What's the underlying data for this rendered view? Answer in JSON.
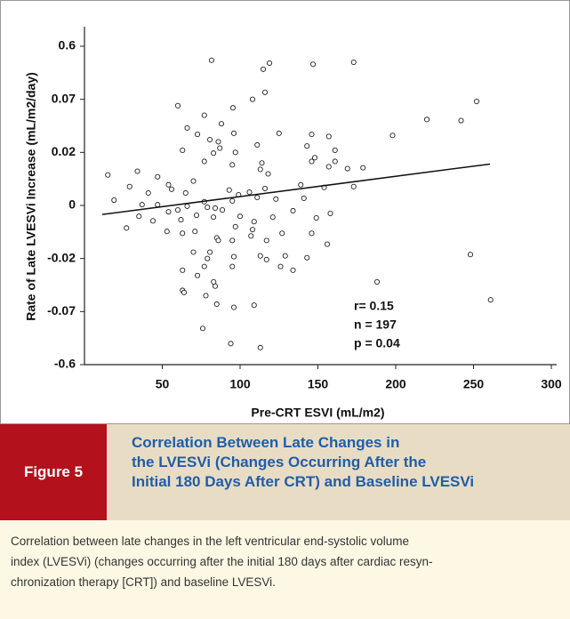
{
  "chart_data": {
    "type": "scatter",
    "x_label": "Pre-CRT ESVI (mL/m2)",
    "y_label": "Rate of Late LVESVi Increase (mL/m2/day)",
    "annotations": [
      "r= 0.15",
      "n = 197",
      "p = 0.04"
    ],
    "xlim": [
      0,
      300
    ],
    "xticks": [
      50,
      100,
      150,
      200,
      250,
      300
    ],
    "ylim": [
      -0.6,
      0.6
    ],
    "yticks": [
      -0.6,
      -0.07,
      -0.02,
      0,
      0.02,
      0.07,
      0.6
    ],
    "yscale": "piecewise",
    "marker_color": "#222222",
    "x": [
      81.7,
      118.9,
      146.9,
      173,
      114.9,
      60,
      116,
      108,
      77,
      66,
      72.6,
      95.4,
      96,
      88,
      80.6,
      86,
      63,
      82.9,
      97,
      77,
      87,
      95,
      111,
      125,
      146,
      157,
      143,
      161,
      146,
      148,
      114,
      113,
      157,
      169,
      161,
      198,
      220,
      242,
      252,
      34,
      15,
      29,
      19,
      47,
      54,
      56,
      70,
      65,
      77,
      88.6,
      93,
      95,
      99,
      106,
      111,
      116,
      123,
      139,
      141,
      154,
      118,
      41,
      37,
      47,
      60,
      66,
      72,
      79,
      84,
      35,
      44,
      54,
      62,
      71,
      82.9,
      100,
      109,
      121,
      134,
      149,
      158,
      27,
      53,
      63,
      85,
      95,
      107,
      117,
      127,
      146,
      80.6,
      86,
      70,
      79,
      77,
      96,
      113,
      129,
      117,
      134,
      143,
      95,
      72.6,
      63,
      84,
      78,
      83,
      63,
      64,
      96,
      109,
      85,
      126,
      76,
      94,
      113,
      248,
      188,
      261,
      97,
      108,
      156,
      173,
      179
    ],
    "values": [
      0.46,
      0.432,
      0.42,
      0.44,
      0.37,
      0.064,
      0.14,
      0.07,
      0.055,
      0.043,
      0.037,
      0.062,
      0.038,
      0.047,
      0.032,
      0.03,
      0.022,
      0.0197,
      0.02,
      0.0166,
      0.024,
      0.0153,
      0.027,
      0.038,
      0.037,
      0.035,
      0.026,
      0.022,
      0.0166,
      0.018,
      0.016,
      0.0136,
      0.0146,
      0.0139,
      0.0166,
      0.036,
      0.051,
      0.05,
      0.068,
      0.0129,
      0.0115,
      0.0071,
      0.002,
      0.0108,
      0.0078,
      0.0061,
      0.0092,
      0.0047,
      0.0014,
      -0.0017,
      0.0058,
      0.0017,
      0.004,
      0.005,
      0.003,
      0.0064,
      0.0024,
      0.0078,
      0.0027,
      0.0068,
      0.0119,
      0.0047,
      0.0003,
      0.0003,
      -0.0017,
      -0.0003,
      -0.0037,
      -0.0007,
      -0.001,
      -0.0041,
      -0.0058,
      -0.0024,
      -0.0054,
      -0.0098,
      -0.0044,
      -0.0041,
      -0.0061,
      -0.0044,
      -0.002,
      -0.0047,
      -0.003,
      -0.0085,
      -0.0098,
      -0.0105,
      -0.0122,
      -0.0132,
      -0.0115,
      -0.0132,
      -0.0105,
      -0.0105,
      -0.0176,
      -0.0132,
      -0.0176,
      -0.02,
      -0.0275,
      -0.0193,
      -0.019,
      -0.019,
      -0.021,
      -0.031,
      -0.0197,
      -0.0275,
      -0.036,
      -0.031,
      -0.046,
      -0.055,
      -0.042,
      -0.05,
      -0.052,
      -0.066,
      -0.064,
      -0.063,
      -0.0275,
      -0.238,
      -0.39,
      -0.43,
      -0.0185,
      -0.042,
      -0.059,
      -0.008,
      -0.0091,
      -0.0146,
      0.0071,
      0.0142
    ],
    "trend_line": {
      "x": [
        11.4,
        260.6
      ],
      "values": [
        -0.0034,
        0.0156
      ]
    }
  },
  "figure": {
    "label": "Figure 5",
    "title_lines": [
      "Correlation Between Late Changes in",
      "the LVESVi (Changes Occurring After the",
      "Initial 180 Days After CRT) and Baseline LVESVi"
    ],
    "caption_lines": [
      "Correlation between late changes in the left ventricular end-systolic volume",
      "index (LVESVi) (changes occurring after the initial 180 days after cardiac resyn-",
      "chronization therapy [CRT]) and baseline LVESVi."
    ]
  }
}
